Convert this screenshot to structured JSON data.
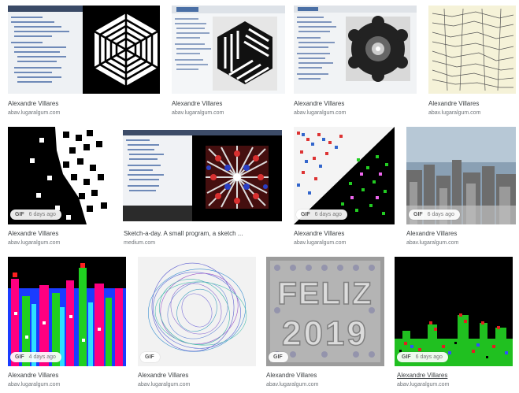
{
  "results": [
    {
      "author": "Alexandre Villares",
      "domain": "abav.lugaralgum.com"
    },
    {
      "author": "Alexandre Villares",
      "domain": "abav.lugaralgum.com"
    },
    {
      "author": "Alexandre Villares",
      "domain": "abav.lugaralgum.com"
    },
    {
      "author": "Alexandre Villares",
      "domain": "abav.lugaralgum.com"
    },
    {
      "author": "Alexandre Villares",
      "domain": "abav.lugaralgum.com",
      "badge": "GIF",
      "age": "6 days ago"
    },
    {
      "author": "Sketch-a-day. A small program, a sketch ...",
      "domain": "medium.com"
    },
    {
      "author": "Alexandre Villares",
      "domain": "abav.lugaralgum.com",
      "badge": "GIF",
      "age": "6 days ago"
    },
    {
      "author": "Alexandre Villares",
      "domain": "abav.lugaralgum.com",
      "badge": "GIF",
      "age": "6 days ago"
    },
    {
      "author": "Alexandre Villares",
      "domain": "abav.lugaralgum.com",
      "badge": "GIF",
      "age": "4 days ago"
    },
    {
      "author": "Alexandre Villares",
      "domain": "abav.lugaralgum.com",
      "badge": "GIF"
    },
    {
      "author": "Alexandre Villares",
      "domain": "abav.lugaralgum.com",
      "badge": "GIF"
    },
    {
      "author": "Alexandre Villares",
      "domain": "abav.lugaralgum.com",
      "badge": "GIF",
      "age": "6 days ago"
    }
  ],
  "thumb_texts": {
    "feliz": "FELIZ",
    "year": "2019"
  }
}
